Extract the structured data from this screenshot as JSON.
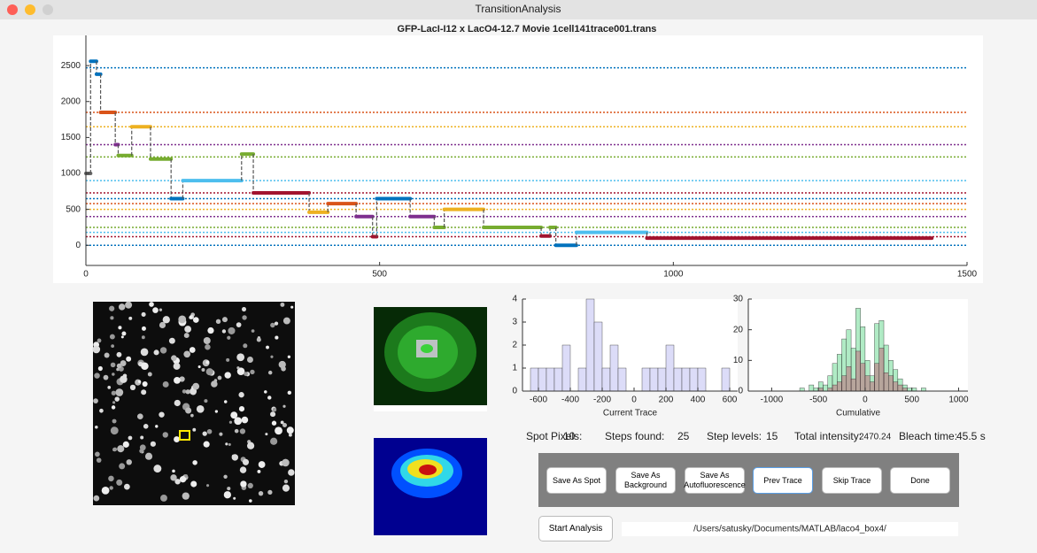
{
  "window": {
    "title": "TransitionAnalysis"
  },
  "chart_data": [
    {
      "type": "step",
      "title": "GFP-LacI-I12  x  LacO4-12.7  Movie  1cell141trace001.trans",
      "xlim": [
        0,
        1500
      ],
      "xticks": [
        0,
        500,
        1000,
        1500
      ],
      "ylim": [
        -280,
        2920
      ],
      "yticks": [
        0,
        500,
        1000,
        1500,
        2000,
        2500
      ],
      "levels": [
        {
          "value": 2470,
          "color": "#0072bd"
        },
        {
          "value": 1850,
          "color": "#d95319"
        },
        {
          "value": 1650,
          "color": "#edb120"
        },
        {
          "value": 1400,
          "color": "#7e2f8e"
        },
        {
          "value": 1230,
          "color": "#77ac30"
        },
        {
          "value": 900,
          "color": "#4dbeee"
        },
        {
          "value": 730,
          "color": "#a2142f"
        },
        {
          "value": 650,
          "color": "#0072bd"
        },
        {
          "value": 580,
          "color": "#d95319"
        },
        {
          "value": 500,
          "color": "#edb120"
        },
        {
          "value": 400,
          "color": "#7e2f8e"
        },
        {
          "value": 250,
          "color": "#77ac30"
        },
        {
          "value": 180,
          "color": "#4dbeee"
        },
        {
          "value": 120,
          "color": "#a2142f"
        },
        {
          "value": 0,
          "color": "#0072bd"
        }
      ],
      "segments": [
        {
          "x_start": 0,
          "x_end": 8,
          "value": 1000,
          "color": "#666666"
        },
        {
          "x_start": 8,
          "x_end": 18,
          "value": 2560,
          "color": "#0072bd"
        },
        {
          "x_start": 18,
          "x_end": 25,
          "value": 2380,
          "color": "#0072bd"
        },
        {
          "x_start": 25,
          "x_end": 50,
          "value": 1850,
          "color": "#d95319"
        },
        {
          "x_start": 50,
          "x_end": 55,
          "value": 1400,
          "color": "#7e2f8e"
        },
        {
          "x_start": 55,
          "x_end": 78,
          "value": 1250,
          "color": "#77ac30"
        },
        {
          "x_start": 78,
          "x_end": 110,
          "value": 1650,
          "color": "#edb120"
        },
        {
          "x_start": 110,
          "x_end": 145,
          "value": 1200,
          "color": "#77ac30"
        },
        {
          "x_start": 145,
          "x_end": 165,
          "value": 650,
          "color": "#0072bd"
        },
        {
          "x_start": 165,
          "x_end": 265,
          "value": 900,
          "color": "#4dbeee"
        },
        {
          "x_start": 265,
          "x_end": 285,
          "value": 1270,
          "color": "#77ac30"
        },
        {
          "x_start": 285,
          "x_end": 380,
          "value": 730,
          "color": "#a2142f"
        },
        {
          "x_start": 380,
          "x_end": 412,
          "value": 460,
          "color": "#edb120"
        },
        {
          "x_start": 412,
          "x_end": 460,
          "value": 580,
          "color": "#d95319"
        },
        {
          "x_start": 460,
          "x_end": 488,
          "value": 400,
          "color": "#7e2f8e"
        },
        {
          "x_start": 488,
          "x_end": 495,
          "value": 120,
          "color": "#a2142f"
        },
        {
          "x_start": 495,
          "x_end": 552,
          "value": 650,
          "color": "#0072bd"
        },
        {
          "x_start": 552,
          "x_end": 593,
          "value": 400,
          "color": "#7e2f8e"
        },
        {
          "x_start": 593,
          "x_end": 610,
          "value": 250,
          "color": "#77ac30"
        },
        {
          "x_start": 610,
          "x_end": 677,
          "value": 500,
          "color": "#edb120"
        },
        {
          "x_start": 677,
          "x_end": 775,
          "value": 250,
          "color": "#77ac30"
        },
        {
          "x_start": 775,
          "x_end": 790,
          "value": 130,
          "color": "#a2142f"
        },
        {
          "x_start": 790,
          "x_end": 800,
          "value": 250,
          "color": "#77ac30"
        },
        {
          "x_start": 800,
          "x_end": 835,
          "value": 0,
          "color": "#0072bd"
        },
        {
          "x_start": 835,
          "x_end": 955,
          "value": 180,
          "color": "#4dbeee"
        },
        {
          "x_start": 955,
          "x_end": 1440,
          "value": 100,
          "color": "#a2142f"
        }
      ]
    },
    {
      "type": "histogram",
      "xlabel": "Current Trace",
      "color": "#dcdcf8",
      "bins": [
        -650,
        -600,
        -550,
        -500,
        -450,
        -400,
        -350,
        -300,
        -250,
        -200,
        -150,
        -100,
        -50,
        0,
        50,
        100,
        150,
        200,
        250,
        300,
        350,
        400,
        450,
        500,
        550,
        600
      ],
      "series": [
        {
          "color": "#dcdcf8",
          "values": [
            1,
            1,
            1,
            1,
            2,
            0,
            1,
            4,
            3,
            1,
            2,
            1,
            0,
            0,
            1,
            1,
            1,
            2,
            1,
            1,
            1,
            1,
            0,
            0,
            1
          ]
        }
      ],
      "xlim": [
        -700,
        650
      ],
      "xticks": [
        -600,
        -400,
        -200,
        0,
        200,
        400,
        600
      ],
      "ylim": [
        0,
        4
      ],
      "yticks": [
        0,
        1,
        2,
        3,
        4
      ]
    },
    {
      "type": "histogram",
      "xlabel": "Cumulative",
      "bins": [
        -800,
        -750,
        -700,
        -650,
        -600,
        -550,
        -500,
        -450,
        -400,
        -350,
        -300,
        -250,
        -200,
        -150,
        -100,
        -50,
        0,
        50,
        100,
        150,
        200,
        250,
        300,
        350,
        400,
        450,
        500,
        550,
        600,
        650,
        700
      ],
      "series": [
        {
          "color": "#4fd37f",
          "values": [
            0,
            0,
            1,
            0,
            2,
            1,
            3,
            2,
            5,
            9,
            12,
            17,
            20,
            14,
            27,
            21,
            10,
            5,
            22,
            23,
            15,
            10,
            7,
            4,
            2,
            1,
            1,
            0,
            1,
            0
          ]
        },
        {
          "color": "#c0506a",
          "values": [
            0,
            0,
            0,
            0,
            0,
            0,
            1,
            0,
            1,
            2,
            3,
            5,
            8,
            4,
            13,
            9,
            5,
            3,
            9,
            14,
            6,
            5,
            3,
            2,
            1,
            0,
            0,
            0,
            0,
            0
          ]
        }
      ],
      "xlim": [
        -1250,
        1100
      ],
      "xticks": [
        -1000,
        -500,
        0,
        500,
        1000
      ],
      "ylim": [
        0,
        30
      ],
      "yticks": [
        0,
        10,
        20,
        30
      ]
    }
  ],
  "stats": [
    {
      "label": "Spot Pixels:",
      "value": "10"
    },
    {
      "label": "Steps found:",
      "value": "25"
    },
    {
      "label": "Step levels:",
      "value": "15"
    },
    {
      "label": "Total intensity:",
      "value": "2470.24"
    },
    {
      "label": "Bleach time:",
      "value": "45.5 s"
    }
  ],
  "buttons": [
    "Save As Spot",
    "Save As Background",
    "Save As Autofluorescence",
    "Prev Trace",
    "Skip Trace",
    "Done"
  ],
  "start_button": "Start Analysis",
  "path": "/Users/satusky/Documents/MATLAB/laco4_box4/"
}
